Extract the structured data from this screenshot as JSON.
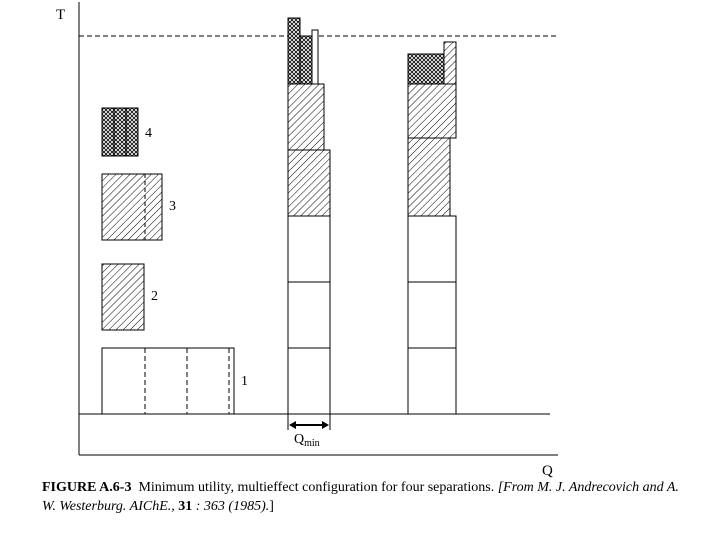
{
  "axes": {
    "y_label": "T",
    "x_label": "Q"
  },
  "legend_labels": [
    "4",
    "3",
    "2",
    "1"
  ],
  "qmin": {
    "main": "Q",
    "sub": "min"
  },
  "caption": {
    "fig_id": "FIGURE A.6-3",
    "text": "Minimum utility, multieffect configuration for four separations.",
    "ref_a": "[From M. J. Andrecovich and A. W. Westerburg. AIChE., ",
    "ref_vol": "31",
    "ref_b": " : 363 (1985).",
    "ref_close": "]"
  }
}
